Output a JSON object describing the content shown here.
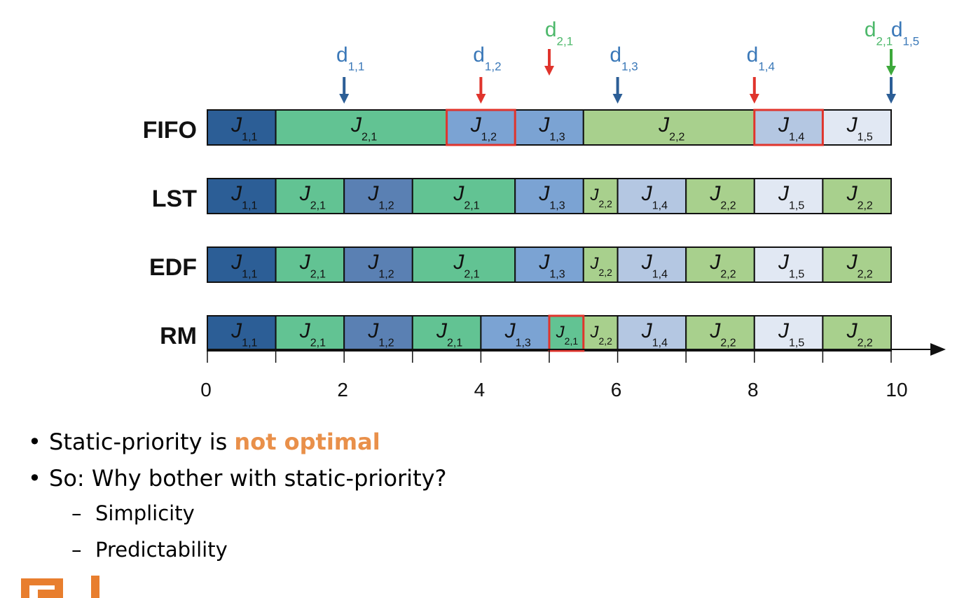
{
  "rows": [
    {
      "label": "FIFO",
      "segments": [
        {
          "job": "1",
          "sub": "1,1",
          "start": 0,
          "end": 1,
          "color": "#2c5e96"
        },
        {
          "job": "2",
          "sub": "2,1",
          "start": 1,
          "end": 3.5,
          "color": "#62c393"
        },
        {
          "job": "1",
          "sub": "1,2",
          "start": 3.5,
          "end": 4.5,
          "color": "#7ba3d3",
          "highlight": true
        },
        {
          "job": "1",
          "sub": "1,3",
          "start": 4.5,
          "end": 5.5,
          "color": "#7ba3d3"
        },
        {
          "job": "2",
          "sub": "2,2",
          "start": 5.5,
          "end": 8,
          "color": "#a8d08d"
        },
        {
          "job": "1",
          "sub": "1,4",
          "start": 8,
          "end": 9,
          "color": "#b4c7e2",
          "highlight": true
        },
        {
          "job": "1",
          "sub": "1,5",
          "start": 9,
          "end": 10,
          "color": "#e1e8f3"
        }
      ]
    },
    {
      "label": "LST",
      "segments": [
        {
          "job": "1",
          "sub": "1,1",
          "start": 0,
          "end": 1,
          "color": "#2c5e96"
        },
        {
          "job": "2",
          "sub": "2,1",
          "start": 1,
          "end": 2,
          "color": "#62c393"
        },
        {
          "job": "1",
          "sub": "1,2",
          "start": 2,
          "end": 3,
          "color": "#5a80b3"
        },
        {
          "job": "2",
          "sub": "2,1",
          "start": 3,
          "end": 4.5,
          "color": "#62c393"
        },
        {
          "job": "1",
          "sub": "1,3",
          "start": 4.5,
          "end": 5.5,
          "color": "#7ba3d3"
        },
        {
          "job": "2",
          "sub": "2,2",
          "start": 5.5,
          "end": 6,
          "color": "#a8d08d"
        },
        {
          "job": "1",
          "sub": "1,4",
          "start": 6,
          "end": 7,
          "color": "#b4c7e2"
        },
        {
          "job": "2",
          "sub": "2,2",
          "start": 7,
          "end": 8,
          "color": "#a8d08d"
        },
        {
          "job": "1",
          "sub": "1,5",
          "start": 8,
          "end": 9,
          "color": "#e1e8f3"
        },
        {
          "job": "2",
          "sub": "2,2",
          "start": 9,
          "end": 10,
          "color": "#a8d08d"
        }
      ]
    },
    {
      "label": "EDF",
      "segments": [
        {
          "job": "1",
          "sub": "1,1",
          "start": 0,
          "end": 1,
          "color": "#2c5e96"
        },
        {
          "job": "2",
          "sub": "2,1",
          "start": 1,
          "end": 2,
          "color": "#62c393"
        },
        {
          "job": "1",
          "sub": "1,2",
          "start": 2,
          "end": 3,
          "color": "#5a80b3"
        },
        {
          "job": "2",
          "sub": "2,1",
          "start": 3,
          "end": 4.5,
          "color": "#62c393"
        },
        {
          "job": "1",
          "sub": "1,3",
          "start": 4.5,
          "end": 5.5,
          "color": "#7ba3d3"
        },
        {
          "job": "2",
          "sub": "2,2",
          "start": 5.5,
          "end": 6,
          "color": "#a8d08d"
        },
        {
          "job": "1",
          "sub": "1,4",
          "start": 6,
          "end": 7,
          "color": "#b4c7e2"
        },
        {
          "job": "2",
          "sub": "2,2",
          "start": 7,
          "end": 8,
          "color": "#a8d08d"
        },
        {
          "job": "1",
          "sub": "1,5",
          "start": 8,
          "end": 9,
          "color": "#e1e8f3"
        },
        {
          "job": "2",
          "sub": "2,2",
          "start": 9,
          "end": 10,
          "color": "#a8d08d"
        }
      ]
    },
    {
      "label": "RM",
      "segments": [
        {
          "job": "1",
          "sub": "1,1",
          "start": 0,
          "end": 1,
          "color": "#2c5e96"
        },
        {
          "job": "2",
          "sub": "2,1",
          "start": 1,
          "end": 2,
          "color": "#62c393"
        },
        {
          "job": "1",
          "sub": "1,2",
          "start": 2,
          "end": 3,
          "color": "#5a80b3"
        },
        {
          "job": "2",
          "sub": "2,1",
          "start": 3,
          "end": 4,
          "color": "#62c393"
        },
        {
          "job": "1",
          "sub": "1,3",
          "start": 4,
          "end": 5,
          "color": "#7ba3d3"
        },
        {
          "job": "2",
          "sub": "2,1",
          "start": 5,
          "end": 5.5,
          "color": "#62c393",
          "highlight": true
        },
        {
          "job": "2",
          "sub": "2,2",
          "start": 5.5,
          "end": 6,
          "color": "#a8d08d"
        },
        {
          "job": "1",
          "sub": "1,4",
          "start": 6,
          "end": 7,
          "color": "#b4c7e2"
        },
        {
          "job": "2",
          "sub": "2,2",
          "start": 7,
          "end": 8,
          "color": "#a8d08d"
        },
        {
          "job": "1",
          "sub": "1,5",
          "start": 8,
          "end": 9,
          "color": "#e1e8f3"
        },
        {
          "job": "2",
          "sub": "2,2",
          "start": 9,
          "end": 10,
          "color": "#a8d08d"
        }
      ]
    }
  ],
  "deadlines": [
    {
      "base": "d",
      "sub": "1,1",
      "t": 2,
      "color": "#3a78b8",
      "arrow_color": "#2c5e96"
    },
    {
      "base": "d",
      "sub": "1,2",
      "t": 4,
      "color": "#3a78b8",
      "arrow_color": "#e0342c"
    },
    {
      "base": "d",
      "sub": "2,1",
      "t": 5,
      "color": "#4cb86a",
      "arrow_color": "#e0342c",
      "level": "high"
    },
    {
      "base": "d",
      "sub": "1,3",
      "t": 6,
      "color": "#3a78b8",
      "arrow_color": "#2c5e96"
    },
    {
      "base": "d",
      "sub": "1,4",
      "t": 8,
      "color": "#3a78b8",
      "arrow_color": "#e0342c"
    },
    {
      "base": "d",
      "sub": "2,1",
      "t": 10,
      "color": "#4cb86a",
      "arrow_color": "#3da83b",
      "level": "pair-left"
    },
    {
      "base": "d",
      "sub": "1,5",
      "t": 10,
      "color": "#3a78b8",
      "arrow_color": "#2c5e96",
      "level": "pair-right"
    }
  ],
  "axis": {
    "min": 0,
    "max": 10,
    "ticks": [
      "0",
      "2",
      "4",
      "6",
      "8",
      "10"
    ]
  },
  "bullets": [
    {
      "prefix": "Static-priority is ",
      "highlight": "not optimal"
    },
    {
      "text": "So: Why bother with static-priority?"
    }
  ],
  "sub_bullets": [
    "Simplicity",
    "Predictability"
  ],
  "colors": {
    "highlight_border": "#e0342c",
    "accent_text": "#e9904a",
    "logo": "#e87e2e"
  }
}
